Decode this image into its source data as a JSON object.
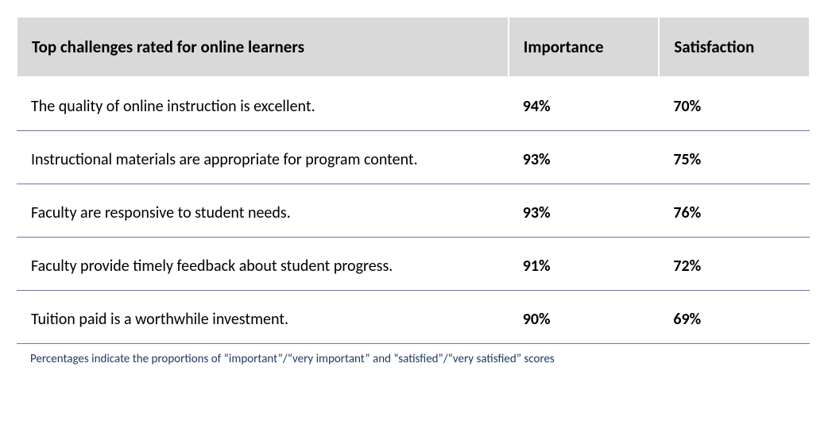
{
  "table": {
    "type": "table",
    "header_bg": "#d9d9d9",
    "header_border": "#ffffff",
    "row_border": "#7b6fa8",
    "text_color": "#000000",
    "header_font_size": 21,
    "body_font_size": 20,
    "columns": [
      {
        "key": "challenge",
        "label": "Top challenges rated for online learners",
        "width_pct": 62,
        "align": "left",
        "bold": false
      },
      {
        "key": "importance",
        "label": "Importance",
        "width_pct": 19,
        "align": "left",
        "bold": true
      },
      {
        "key": "satisfaction",
        "label": "Satisfaction",
        "width_pct": 19,
        "align": "left",
        "bold": true
      }
    ],
    "rows": [
      {
        "challenge": "The quality of online instruction is excellent.",
        "importance": "94%",
        "satisfaction": "70%"
      },
      {
        "challenge": "Instructional materials are appropriate for program content.",
        "importance": "93%",
        "satisfaction": "75%"
      },
      {
        "challenge": "Faculty are responsive to student needs.",
        "importance": "93%",
        "satisfaction": "76%"
      },
      {
        "challenge": "Faculty provide timely feedback about student progress.",
        "importance": "91%",
        "satisfaction": "72%"
      },
      {
        "challenge": "Tuition paid is a worthwhile investment.",
        "importance": "90%",
        "satisfaction": "69%"
      }
    ]
  },
  "footnote": {
    "text": "Percentages indicate the proportions of “important”/“very important” and “satisfied”/“very satisfied” scores",
    "color": "#1f3c63",
    "font_size": 15
  }
}
